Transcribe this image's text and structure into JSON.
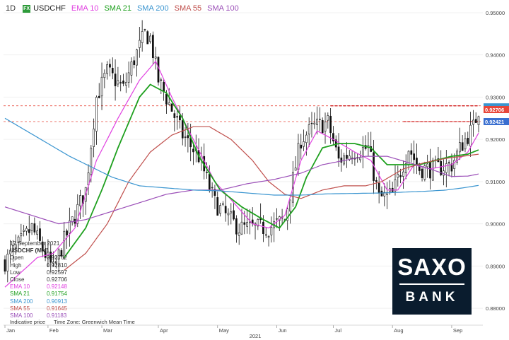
{
  "header": {
    "timeframe": "1D",
    "fx_badge": "FX",
    "symbol": "USDCHF",
    "indicators": [
      {
        "label": "EMA 10",
        "color": "#e040e0"
      },
      {
        "label": "SMA 21",
        "color": "#1ea01e"
      },
      {
        "label": "SMA 200",
        "color": "#3a95d0"
      },
      {
        "label": "SMA 55",
        "color": "#c0504d"
      },
      {
        "label": "SMA 100",
        "color": "#9b4fb8"
      }
    ]
  },
  "info_panel": {
    "date": "17 September 2021",
    "title": "USDCHF (Mid)",
    "rows": [
      {
        "k": "Open",
        "v": "0.92762",
        "color": "#333333"
      },
      {
        "k": "High",
        "v": "0.92810",
        "color": "#333333"
      },
      {
        "k": "Low",
        "v": "0.92597",
        "color": "#333333"
      },
      {
        "k": "Close",
        "v": "0.92706",
        "color": "#333333"
      },
      {
        "k": "EMA 10",
        "v": "0.92148",
        "color": "#e040e0"
      },
      {
        "k": "SMA 21",
        "v": "0.91754",
        "color": "#1ea01e"
      },
      {
        "k": "SMA 200",
        "v": "0.90913",
        "color": "#3a95d0"
      },
      {
        "k": "SMA 55",
        "v": "0.91645",
        "color": "#c0504d"
      },
      {
        "k": "SMA 100",
        "v": "0.91183",
        "color": "#9b4fb8"
      }
    ]
  },
  "footnote": {
    "left": "Indicative price",
    "right": "Time Zone: Greenwich Mean Time"
  },
  "logo": {
    "top": "SAXO",
    "bottom": "BANK"
  },
  "chart_data": {
    "type": "candlestick",
    "ylim": [
      0.876,
      0.952
    ],
    "yticks": [
      "0.95000",
      "0.94000",
      "0.93000",
      "0.92000",
      "0.91000",
      "0.90000",
      "0.89000",
      "0.88000"
    ],
    "ytick_values": [
      0.95,
      0.94,
      0.93,
      0.92,
      0.91,
      0.9,
      0.89,
      0.88
    ],
    "month_labels": [
      "Jan",
      "Feb",
      "Mar",
      "Apr",
      "May",
      "Jun",
      "Jul",
      "Aug",
      "Sep"
    ],
    "month_index": [
      0,
      16,
      36,
      57,
      79,
      101,
      122,
      144,
      166
    ],
    "year_label": "2021",
    "year_index": 93,
    "price_labels": [
      {
        "value": "0.92706",
        "y": 0.92706,
        "color": "#e8463a"
      },
      {
        "value": "0.92421",
        "y": 0.92421,
        "color": "#3a6fd0"
      }
    ],
    "price_bg": {
      "value": 0.9277,
      "color": "#3a95d0"
    },
    "ref_lines": [
      0.92795,
      0.92421
    ],
    "resistance_lines": [
      {
        "x1": 121,
        "x2": 176,
        "y": 0.92795
      },
      {
        "x1": 148,
        "x2": 176,
        "y": 0.92421
      }
    ],
    "candle_anchors": [
      [
        0,
        0.891
      ],
      [
        10,
        0.899
      ],
      [
        18,
        0.889
      ],
      [
        22,
        0.896
      ],
      [
        30,
        0.908
      ],
      [
        34,
        0.93
      ],
      [
        38,
        0.936
      ],
      [
        44,
        0.932
      ],
      [
        48,
        0.939
      ],
      [
        52,
        0.945
      ],
      [
        54,
        0.944
      ],
      [
        57,
        0.934
      ],
      [
        62,
        0.927
      ],
      [
        66,
        0.921
      ],
      [
        72,
        0.916
      ],
      [
        78,
        0.905
      ],
      [
        82,
        0.902
      ],
      [
        87,
        0.899
      ],
      [
        92,
        0.899
      ],
      [
        98,
        0.899
      ],
      [
        104,
        0.901
      ],
      [
        110,
        0.92
      ],
      [
        115,
        0.923
      ],
      [
        120,
        0.924
      ],
      [
        124,
        0.915
      ],
      [
        129,
        0.917
      ],
      [
        135,
        0.918
      ],
      [
        139,
        0.906
      ],
      [
        144,
        0.907
      ],
      [
        150,
        0.918
      ],
      [
        154,
        0.913
      ],
      [
        160,
        0.913
      ],
      [
        166,
        0.914
      ],
      [
        170,
        0.919
      ],
      [
        174,
        0.9228
      ],
      [
        176,
        0.9271
      ]
    ],
    "series": [
      {
        "name": "EMA 10",
        "color": "#e040e0",
        "anchors": [
          [
            0,
            0.885
          ],
          [
            12,
            0.892
          ],
          [
            18,
            0.893
          ],
          [
            26,
            0.899
          ],
          [
            34,
            0.915
          ],
          [
            42,
            0.925
          ],
          [
            50,
            0.934
          ],
          [
            56,
            0.9385
          ],
          [
            62,
            0.93
          ],
          [
            70,
            0.92
          ],
          [
            78,
            0.91
          ],
          [
            85,
            0.905
          ],
          [
            92,
            0.9
          ],
          [
            98,
            0.899
          ],
          [
            104,
            0.902
          ],
          [
            110,
            0.915
          ],
          [
            116,
            0.922
          ],
          [
            122,
            0.92
          ],
          [
            130,
            0.917
          ],
          [
            136,
            0.915
          ],
          [
            142,
            0.908
          ],
          [
            146,
            0.908
          ],
          [
            152,
            0.914
          ],
          [
            158,
            0.913
          ],
          [
            166,
            0.914
          ],
          [
            172,
            0.917
          ],
          [
            176,
            0.9215
          ]
        ]
      },
      {
        "name": "SMA 21",
        "color": "#1ea01e",
        "anchors": [
          [
            22,
            0.892
          ],
          [
            30,
            0.899
          ],
          [
            36,
            0.908
          ],
          [
            42,
            0.918
          ],
          [
            50,
            0.93
          ],
          [
            54,
            0.933
          ],
          [
            60,
            0.931
          ],
          [
            66,
            0.925
          ],
          [
            72,
            0.916
          ],
          [
            80,
            0.908
          ],
          [
            88,
            0.904
          ],
          [
            96,
            0.901
          ],
          [
            102,
            0.899
          ],
          [
            108,
            0.904
          ],
          [
            112,
            0.911
          ],
          [
            118,
            0.918
          ],
          [
            124,
            0.919
          ],
          [
            130,
            0.919
          ],
          [
            136,
            0.918
          ],
          [
            142,
            0.914
          ],
          [
            148,
            0.914
          ],
          [
            154,
            0.914
          ],
          [
            160,
            0.915
          ],
          [
            166,
            0.916
          ],
          [
            172,
            0.9165
          ],
          [
            176,
            0.9175
          ]
        ]
      },
      {
        "name": "SMA 55",
        "color": "#c0504d",
        "anchors": [
          [
            22,
            0.889
          ],
          [
            30,
            0.893
          ],
          [
            38,
            0.9
          ],
          [
            46,
            0.91
          ],
          [
            54,
            0.917
          ],
          [
            62,
            0.921
          ],
          [
            70,
            0.923
          ],
          [
            76,
            0.923
          ],
          [
            84,
            0.92
          ],
          [
            92,
            0.915
          ],
          [
            98,
            0.91
          ],
          [
            104,
            0.907
          ],
          [
            110,
            0.906
          ],
          [
            118,
            0.908
          ],
          [
            126,
            0.909
          ],
          [
            134,
            0.909
          ],
          [
            140,
            0.91
          ],
          [
            148,
            0.913
          ],
          [
            156,
            0.9145
          ],
          [
            164,
            0.9155
          ],
          [
            170,
            0.916
          ],
          [
            176,
            0.9165
          ]
        ]
      },
      {
        "name": "SMA 100",
        "color": "#9b4fb8",
        "anchors": [
          [
            0,
            0.904
          ],
          [
            10,
            0.902
          ],
          [
            20,
            0.9
          ],
          [
            30,
            0.901
          ],
          [
            40,
            0.903
          ],
          [
            50,
            0.905
          ],
          [
            60,
            0.907
          ],
          [
            70,
            0.908
          ],
          [
            80,
            0.908
          ],
          [
            90,
            0.9095
          ],
          [
            100,
            0.9105
          ],
          [
            110,
            0.912
          ],
          [
            118,
            0.914
          ],
          [
            126,
            0.915
          ],
          [
            134,
            0.916
          ],
          [
            142,
            0.916
          ],
          [
            150,
            0.9145
          ],
          [
            158,
            0.913
          ],
          [
            166,
            0.9112
          ],
          [
            172,
            0.9113
          ],
          [
            176,
            0.9118
          ]
        ]
      },
      {
        "name": "SMA 200",
        "color": "#3a95d0",
        "anchors": [
          [
            0,
            0.925
          ],
          [
            8,
            0.922
          ],
          [
            16,
            0.919
          ],
          [
            24,
            0.916
          ],
          [
            32,
            0.9135
          ],
          [
            40,
            0.911
          ],
          [
            50,
            0.909
          ],
          [
            60,
            0.9085
          ],
          [
            70,
            0.908
          ],
          [
            80,
            0.9078
          ],
          [
            90,
            0.9073
          ],
          [
            100,
            0.9068
          ],
          [
            110,
            0.9068
          ],
          [
            120,
            0.9071
          ],
          [
            130,
            0.9072
          ],
          [
            140,
            0.9073
          ],
          [
            148,
            0.9075
          ],
          [
            156,
            0.9077
          ],
          [
            164,
            0.908
          ],
          [
            170,
            0.9085
          ],
          [
            176,
            0.9091
          ]
        ]
      }
    ]
  }
}
